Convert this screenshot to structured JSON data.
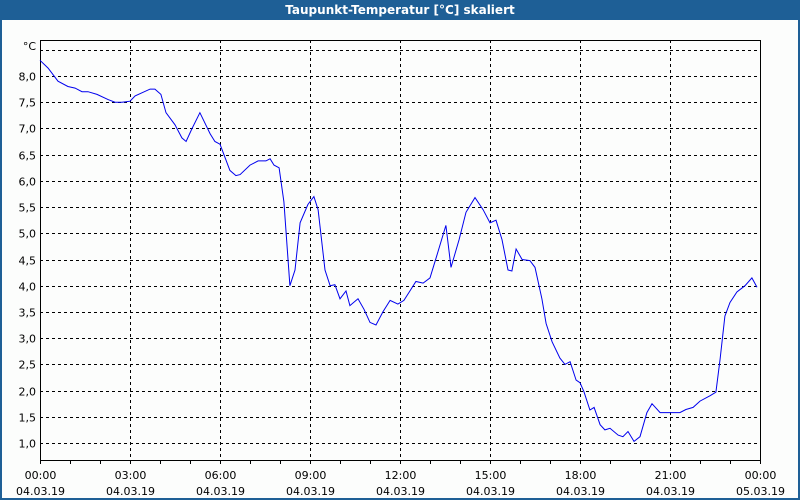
{
  "window": {
    "title": "Taupunkt-Temperatur [°C] skaliert"
  },
  "chart_data": {
    "type": "line",
    "title": "Taupunkt-Temperatur [°C] skaliert",
    "ylabel": "°C",
    "xlabel": "",
    "xlim_hours": [
      0,
      24
    ],
    "ylim": [
      0.68,
      8.69
    ],
    "grid": true,
    "y_ticks": [
      {
        "value": 1.0,
        "label": "1,0"
      },
      {
        "value": 1.5,
        "label": "1,5"
      },
      {
        "value": 2.0,
        "label": "2,0"
      },
      {
        "value": 2.5,
        "label": "2,5"
      },
      {
        "value": 3.0,
        "label": "3,0"
      },
      {
        "value": 3.5,
        "label": "3,5"
      },
      {
        "value": 4.0,
        "label": "4,0"
      },
      {
        "value": 4.5,
        "label": "4,5"
      },
      {
        "value": 5.0,
        "label": "5,0"
      },
      {
        "value": 5.5,
        "label": "5,5"
      },
      {
        "value": 6.0,
        "label": "6,0"
      },
      {
        "value": 6.5,
        "label": "6,5"
      },
      {
        "value": 7.0,
        "label": "7,0"
      },
      {
        "value": 7.5,
        "label": "7,5"
      },
      {
        "value": 8.0,
        "label": "8,0"
      },
      {
        "value": 8.5,
        "label": ""
      }
    ],
    "x_ticks": [
      {
        "hour": 0,
        "time": "00:00",
        "date": "04.03.19"
      },
      {
        "hour": 3,
        "time": "03:00",
        "date": "04.03.19"
      },
      {
        "hour": 6,
        "time": "06:00",
        "date": "04.03.19"
      },
      {
        "hour": 9,
        "time": "09:00",
        "date": "04.03.19"
      },
      {
        "hour": 12,
        "time": "12:00",
        "date": "04.03.19"
      },
      {
        "hour": 15,
        "time": "15:00",
        "date": "04.03.19"
      },
      {
        "hour": 18,
        "time": "18:00",
        "date": "04.03.19"
      },
      {
        "hour": 21,
        "time": "21:00",
        "date": "04.03.19"
      },
      {
        "hour": 24,
        "time": "00:00",
        "date": "05.03.19"
      }
    ],
    "series": [
      {
        "name": "Taupunkt",
        "color": "#0000ee",
        "points": [
          [
            0,
            8.3
          ],
          [
            0.27,
            8.15
          ],
          [
            0.6,
            7.9
          ],
          [
            0.93,
            7.8
          ],
          [
            1.17,
            7.77
          ],
          [
            1.4,
            7.7
          ],
          [
            1.6,
            7.7
          ],
          [
            1.9,
            7.65
          ],
          [
            2.27,
            7.55
          ],
          [
            2.5,
            7.5
          ],
          [
            2.73,
            7.5
          ],
          [
            3,
            7.52
          ],
          [
            3.17,
            7.62
          ],
          [
            3.67,
            7.75
          ],
          [
            3.83,
            7.75
          ],
          [
            4.03,
            7.65
          ],
          [
            4.2,
            7.3
          ],
          [
            4.5,
            7.07
          ],
          [
            4.73,
            6.82
          ],
          [
            4.87,
            6.75
          ],
          [
            5.07,
            7.0
          ],
          [
            5.33,
            7.3
          ],
          [
            5.67,
            6.9
          ],
          [
            5.83,
            6.75
          ],
          [
            6,
            6.7
          ],
          [
            6.33,
            6.2
          ],
          [
            6.53,
            6.1
          ],
          [
            6.67,
            6.12
          ],
          [
            7,
            6.3
          ],
          [
            7.27,
            6.38
          ],
          [
            7.53,
            6.38
          ],
          [
            7.67,
            6.42
          ],
          [
            7.8,
            6.3
          ],
          [
            7.97,
            6.25
          ],
          [
            8.13,
            5.6
          ],
          [
            8.33,
            4.0
          ],
          [
            8.5,
            4.3
          ],
          [
            8.67,
            5.2
          ],
          [
            8.93,
            5.55
          ],
          [
            9.13,
            5.7
          ],
          [
            9.27,
            5.45
          ],
          [
            9.5,
            4.3
          ],
          [
            9.67,
            4.0
          ],
          [
            9.83,
            4.02
          ],
          [
            10,
            3.75
          ],
          [
            10.2,
            3.9
          ],
          [
            10.33,
            3.62
          ],
          [
            10.6,
            3.75
          ],
          [
            10.8,
            3.55
          ],
          [
            11,
            3.3
          ],
          [
            11.2,
            3.25
          ],
          [
            11.43,
            3.5
          ],
          [
            11.67,
            3.72
          ],
          [
            11.93,
            3.65
          ],
          [
            12.13,
            3.72
          ],
          [
            12.33,
            3.9
          ],
          [
            12.53,
            4.08
          ],
          [
            12.77,
            4.05
          ],
          [
            13,
            4.15
          ],
          [
            13.23,
            4.58
          ],
          [
            13.53,
            5.15
          ],
          [
            13.7,
            4.35
          ],
          [
            13.97,
            4.88
          ],
          [
            14.2,
            5.4
          ],
          [
            14.5,
            5.68
          ],
          [
            14.77,
            5.45
          ],
          [
            15,
            5.2
          ],
          [
            15.2,
            5.25
          ],
          [
            15.4,
            4.88
          ],
          [
            15.6,
            4.3
          ],
          [
            15.73,
            4.28
          ],
          [
            15.87,
            4.7
          ],
          [
            16.07,
            4.5
          ],
          [
            16.33,
            4.48
          ],
          [
            16.5,
            4.35
          ],
          [
            16.73,
            3.75
          ],
          [
            16.87,
            3.28
          ],
          [
            17.07,
            2.93
          ],
          [
            17.33,
            2.62
          ],
          [
            17.5,
            2.5
          ],
          [
            17.67,
            2.55
          ],
          [
            17.87,
            2.2
          ],
          [
            18,
            2.15
          ],
          [
            18.13,
            1.98
          ],
          [
            18.33,
            1.63
          ],
          [
            18.47,
            1.68
          ],
          [
            18.67,
            1.35
          ],
          [
            18.83,
            1.25
          ],
          [
            19,
            1.28
          ],
          [
            19.27,
            1.15
          ],
          [
            19.43,
            1.12
          ],
          [
            19.6,
            1.22
          ],
          [
            19.8,
            1.03
          ],
          [
            20,
            1.12
          ],
          [
            20.23,
            1.58
          ],
          [
            20.4,
            1.75
          ],
          [
            20.67,
            1.58
          ],
          [
            20.83,
            1.58
          ],
          [
            21.17,
            1.58
          ],
          [
            21.33,
            1.58
          ],
          [
            21.53,
            1.64
          ],
          [
            21.77,
            1.68
          ],
          [
            22,
            1.8
          ],
          [
            22.33,
            1.9
          ],
          [
            22.53,
            1.97
          ],
          [
            22.67,
            2.6
          ],
          [
            22.83,
            3.42
          ],
          [
            23,
            3.68
          ],
          [
            23.23,
            3.88
          ],
          [
            23.5,
            4.0
          ],
          [
            23.73,
            4.15
          ],
          [
            23.9,
            3.97
          ]
        ]
      }
    ]
  }
}
